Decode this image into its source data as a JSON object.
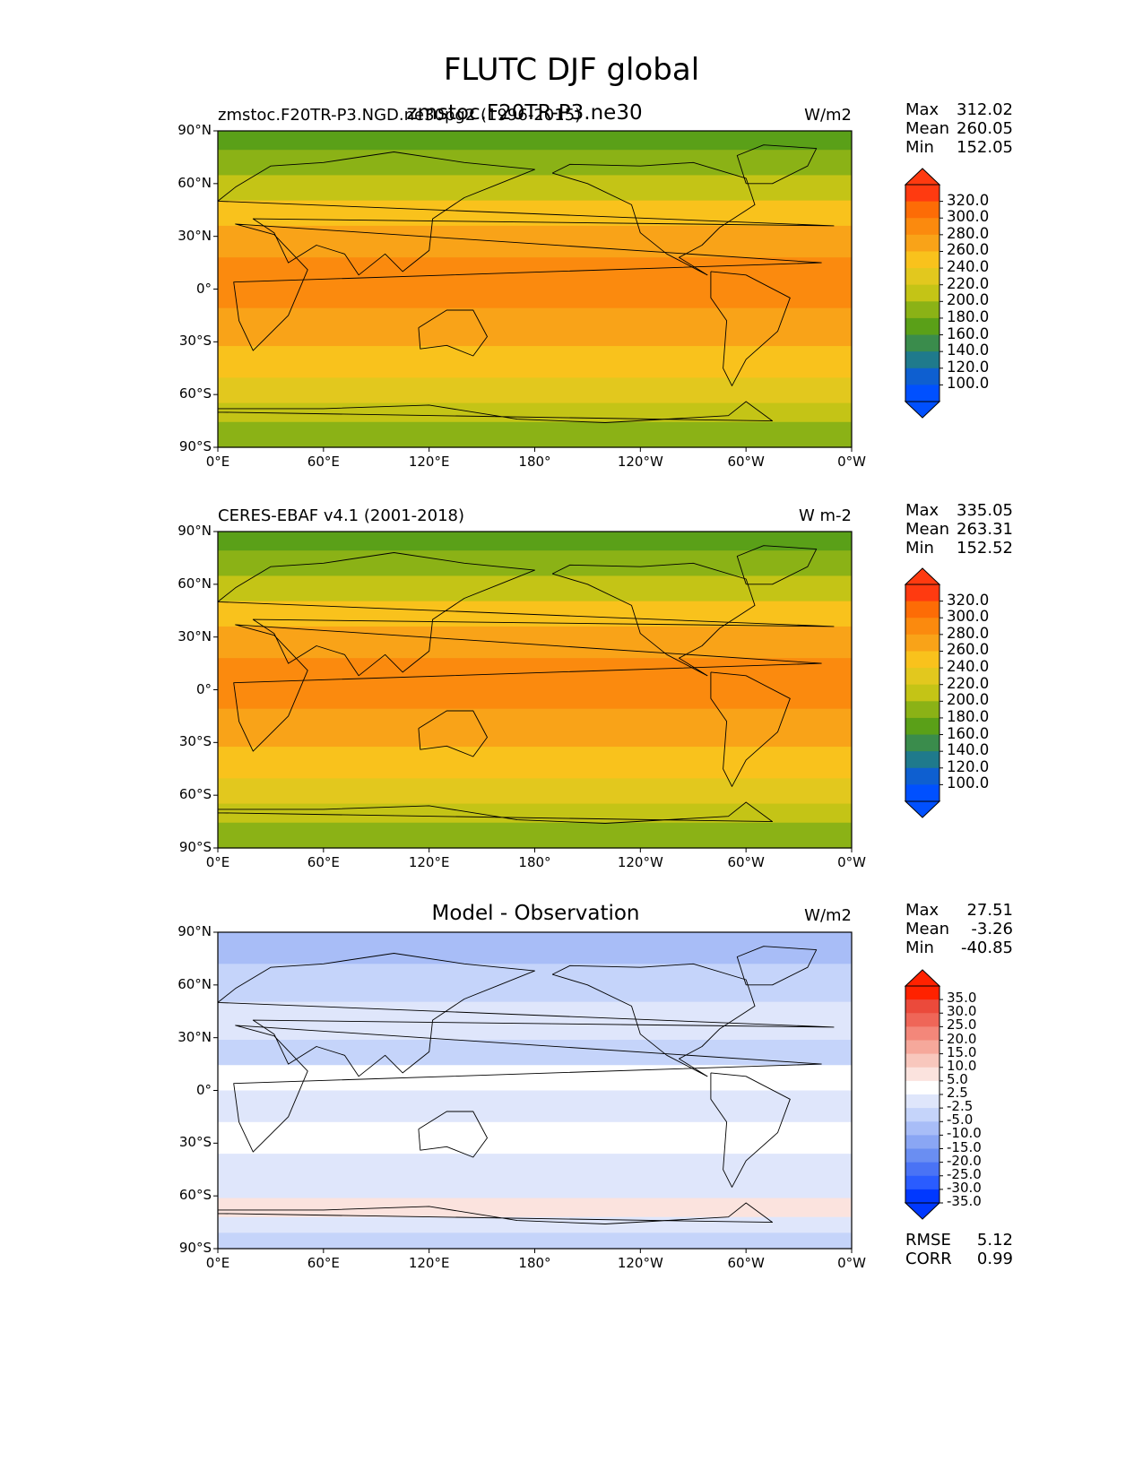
{
  "figure": {
    "title": "FLUTC DJF global",
    "colors": {
      "ref_bins": [
        "#0050ff",
        "#0e5fd0",
        "#1f7a8c",
        "#3a8c4c",
        "#5aa018",
        "#8bb216",
        "#c4c416",
        "#e2c81e",
        "#f9c21c",
        "#f9a318",
        "#fb8a0e",
        "#fd6c06",
        "#ff3a10"
      ],
      "diff_bins": [
        "#0038ff",
        "#2a5cff",
        "#4a73f5",
        "#6a8ef2",
        "#8aa6f4",
        "#a8bdf7",
        "#c5d4fa",
        "#dfe6fb",
        "#ffffff",
        "#fbe3de",
        "#f8c7bd",
        "#f6a89b",
        "#f3877a",
        "#ef6658",
        "#eb4a3b",
        "#ff2200"
      ]
    }
  },
  "panels": [
    {
      "id": "test",
      "title_left": "zmstoc.F20TR-P3.NGD.ne30pg2 (1996-2015)",
      "title_center": "zmstoc.F20TR-P3.ne30",
      "units": "W/m2",
      "stats": {
        "labels": [
          "Max",
          "Mean",
          "Min"
        ],
        "values": [
          "312.02",
          "260.05",
          "152.05"
        ]
      },
      "colorbar_ticks": [
        "320.0",
        "300.0",
        "280.0",
        "260.0",
        "240.0",
        "220.0",
        "200.0",
        "180.0",
        "160.0",
        "140.0",
        "120.0",
        "100.0"
      ]
    },
    {
      "id": "reference",
      "title_left": "CERES-EBAF v4.1 (2001-2018)",
      "units": "W m-2",
      "stats": {
        "labels": [
          "Max",
          "Mean",
          "Min"
        ],
        "values": [
          "335.05",
          "263.31",
          "152.52"
        ]
      },
      "colorbar_ticks": [
        "320.0",
        "300.0",
        "280.0",
        "260.0",
        "240.0",
        "220.0",
        "200.0",
        "180.0",
        "160.0",
        "140.0",
        "120.0",
        "100.0"
      ]
    },
    {
      "id": "diff",
      "title_center": "Model - Observation",
      "units": "W/m2",
      "stats": {
        "labels": [
          "Max",
          "Mean",
          "Min"
        ],
        "values": [
          "27.51",
          "-3.26",
          "-40.85"
        ]
      },
      "colorbar_ticks": [
        "35.0",
        "30.0",
        "25.0",
        "20.0",
        "15.0",
        "10.0",
        "5.0",
        "2.5",
        "-2.5",
        "-5.0",
        "-10.0",
        "-15.0",
        "-20.0",
        "-25.0",
        "-30.0",
        "-35.0"
      ],
      "extra_stats": {
        "labels": [
          "RMSE",
          "CORR"
        ],
        "values": [
          "5.12",
          "0.99"
        ]
      }
    }
  ],
  "axes": {
    "lat_ticks": [
      "90°N",
      "60°N",
      "30°N",
      "0°",
      "30°S",
      "60°S",
      "90°S"
    ],
    "lon_ticks": [
      "0°E",
      "60°E",
      "120°E",
      "180°",
      "120°W",
      "60°W",
      "0°W"
    ]
  }
}
